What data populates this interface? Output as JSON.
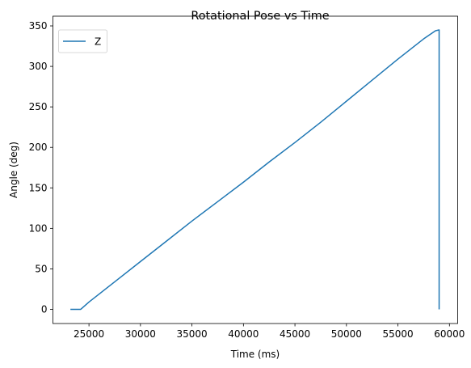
{
  "chart_data": {
    "type": "line",
    "title": "Rotational Pose vs Time",
    "xlabel": "Time (ms)",
    "ylabel": "Angle (deg)",
    "xlim": [
      21500,
      60800
    ],
    "ylim": [
      -17.5,
      362
    ],
    "xticks": [
      25000,
      30000,
      35000,
      40000,
      45000,
      50000,
      55000,
      60000
    ],
    "yticks": [
      0,
      50,
      100,
      150,
      200,
      250,
      300,
      350
    ],
    "grid": false,
    "legend_position": "top-left",
    "series": [
      {
        "name": "Z",
        "color": "#1f77b4",
        "x": [
          23200,
          24200,
          25000,
          27500,
          30000,
          32500,
          35000,
          37500,
          40000,
          42500,
          45000,
          47500,
          50000,
          52500,
          55000,
          57500,
          58650,
          59000,
          59000
        ],
        "y": [
          0,
          0,
          9,
          34,
          59,
          84,
          109,
          133,
          157,
          182,
          206,
          231,
          257,
          283,
          309,
          334,
          344,
          345,
          0
        ]
      }
    ]
  }
}
